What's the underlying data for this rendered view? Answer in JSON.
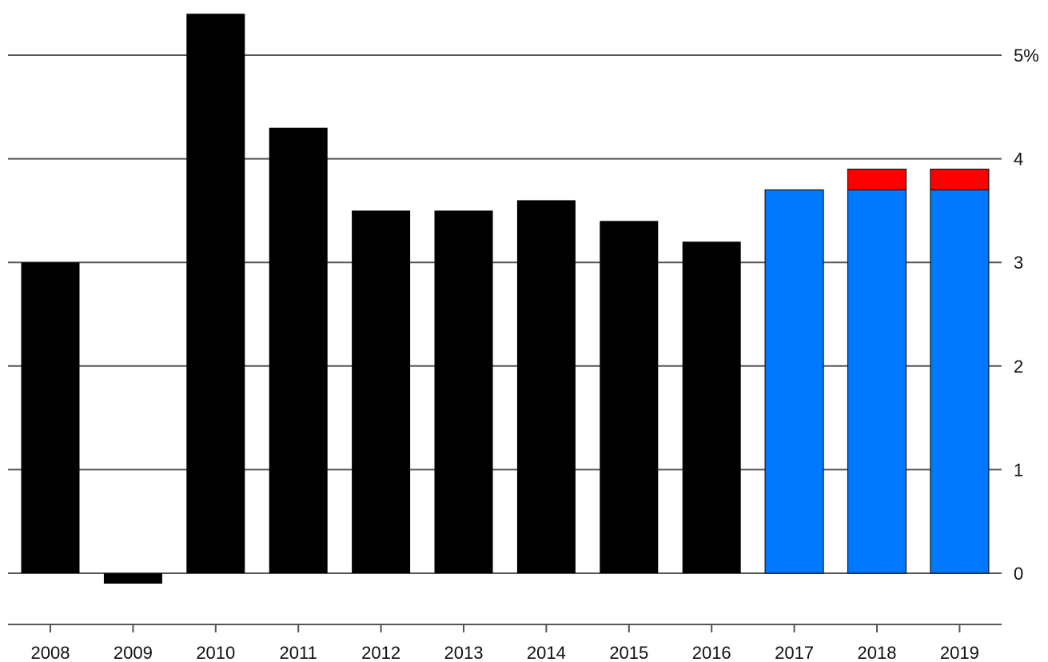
{
  "chart_data": {
    "type": "bar",
    "stacked": true,
    "categories": [
      "2008",
      "2009",
      "2010",
      "2011",
      "2012",
      "2013",
      "2014",
      "2015",
      "2016",
      "2017",
      "2018",
      "2019"
    ],
    "series": [
      {
        "color": "#000000",
        "values": [
          3.0,
          -0.1,
          5.4,
          4.3,
          3.5,
          3.5,
          3.6,
          3.4,
          3.2,
          null,
          null,
          null
        ]
      },
      {
        "color": "#0077ff",
        "values": [
          null,
          null,
          null,
          null,
          null,
          null,
          null,
          null,
          null,
          3.7,
          3.7,
          3.7
        ]
      },
      {
        "color": "#ff0000",
        "values": [
          null,
          null,
          null,
          null,
          null,
          null,
          null,
          null,
          null,
          null,
          0.2,
          0.2
        ]
      }
    ],
    "y_ticks": [
      0,
      1,
      2,
      3,
      4,
      5
    ],
    "y_tick_labels": [
      "0",
      "1",
      "2",
      "3",
      "4",
      "5%"
    ],
    "ylim": [
      -0.5,
      5.5
    ],
    "y_axis_side": "right",
    "grid": true,
    "legend": "none"
  }
}
